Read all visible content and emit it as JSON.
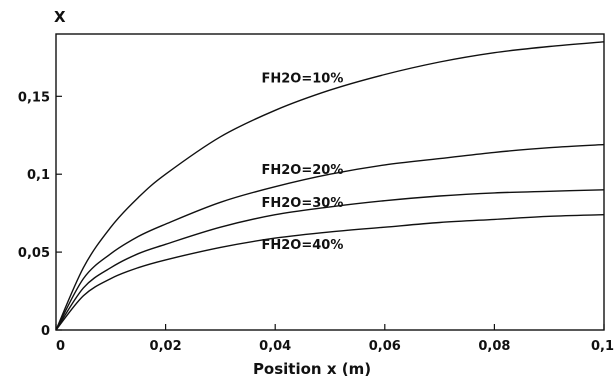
{
  "chart_data": {
    "type": "line",
    "title": "",
    "xlabel": "Position x (m)",
    "ylabel": "X",
    "xlim": [
      0,
      0.1
    ],
    "ylim": [
      0,
      0.19
    ],
    "grid": false,
    "x_ticks": [
      {
        "value": 0,
        "label": "0"
      },
      {
        "value": 0.02,
        "label": "0,02"
      },
      {
        "value": 0.04,
        "label": "0,04"
      },
      {
        "value": 0.06,
        "label": "0,06"
      },
      {
        "value": 0.08,
        "label": "0,08"
      },
      {
        "value": 0.1,
        "label": "0,1"
      }
    ],
    "y_ticks": [
      {
        "value": 0,
        "label": "0"
      },
      {
        "value": 0.05,
        "label": "0,05"
      },
      {
        "value": 0.1,
        "label": "0,1"
      },
      {
        "value": 0.15,
        "label": "0,15"
      }
    ],
    "series": [
      {
        "name": "FH2O=10%",
        "x": [
          0,
          0.005,
          0.01,
          0.015,
          0.02,
          0.03,
          0.04,
          0.05,
          0.06,
          0.07,
          0.08,
          0.09,
          0.1
        ],
        "y": [
          0,
          0.04,
          0.066,
          0.085,
          0.1,
          0.124,
          0.141,
          0.154,
          0.164,
          0.172,
          0.178,
          0.182,
          0.185
        ]
      },
      {
        "name": "FH2O=20%",
        "x": [
          0,
          0.005,
          0.01,
          0.015,
          0.02,
          0.03,
          0.04,
          0.05,
          0.06,
          0.07,
          0.08,
          0.09,
          0.1
        ],
        "y": [
          0,
          0.033,
          0.049,
          0.06,
          0.068,
          0.082,
          0.092,
          0.1,
          0.106,
          0.11,
          0.114,
          0.117,
          0.119
        ]
      },
      {
        "name": "FH2O=30%",
        "x": [
          0,
          0.005,
          0.01,
          0.015,
          0.02,
          0.03,
          0.04,
          0.05,
          0.06,
          0.07,
          0.08,
          0.09,
          0.1
        ],
        "y": [
          0,
          0.027,
          0.04,
          0.049,
          0.055,
          0.066,
          0.074,
          0.079,
          0.083,
          0.086,
          0.088,
          0.089,
          0.09
        ]
      },
      {
        "name": "FH2O=40%",
        "x": [
          0,
          0.005,
          0.01,
          0.015,
          0.02,
          0.03,
          0.04,
          0.05,
          0.06,
          0.07,
          0.08,
          0.09,
          0.1
        ],
        "y": [
          0,
          0.022,
          0.033,
          0.04,
          0.045,
          0.053,
          0.059,
          0.063,
          0.066,
          0.069,
          0.071,
          0.073,
          0.074
        ]
      }
    ]
  }
}
